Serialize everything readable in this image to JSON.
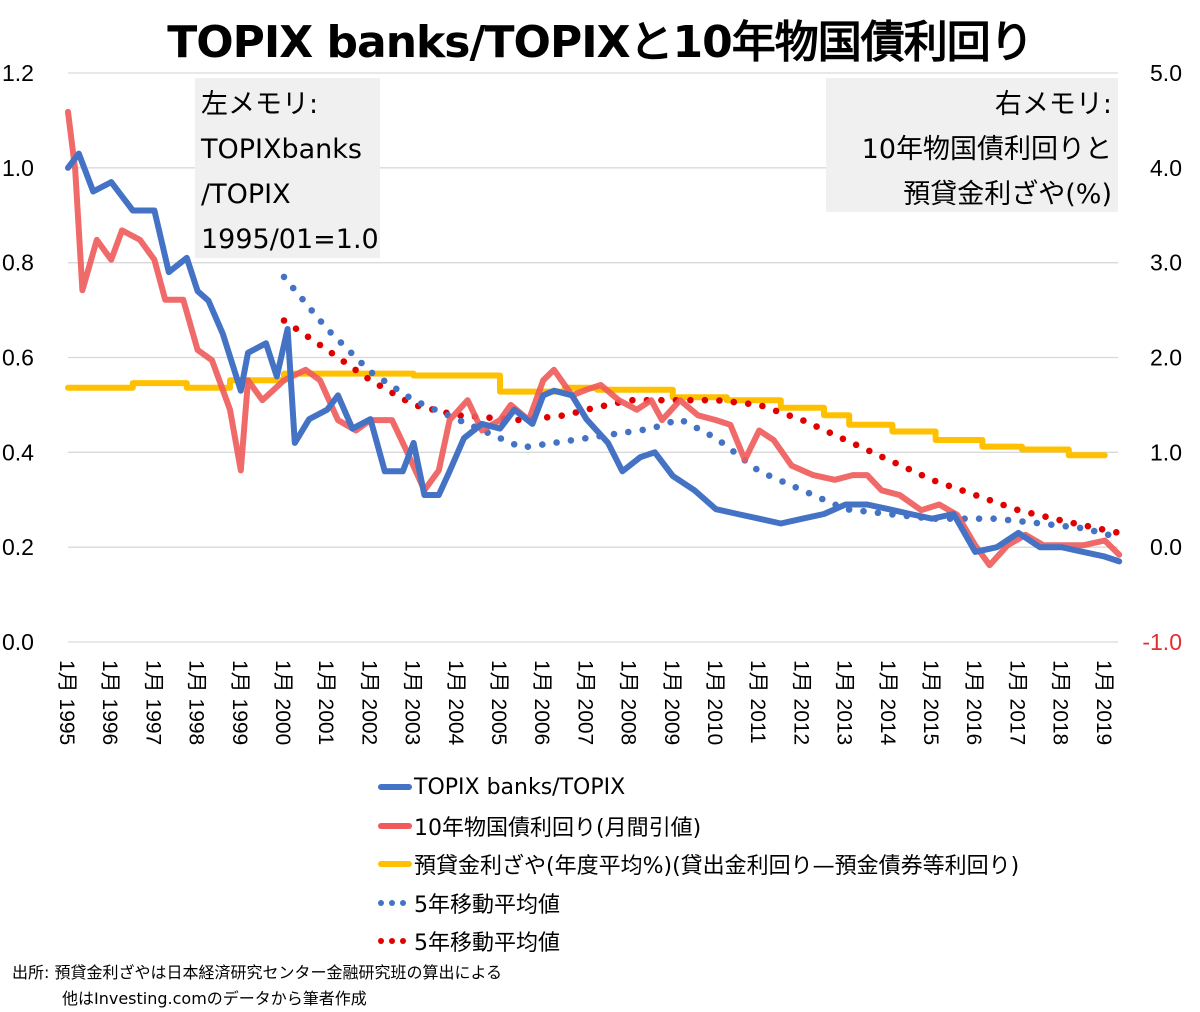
{
  "chart_data": {
    "type": "line",
    "title": "TOPIX banks/TOPIXと10年物国債利回り",
    "x_ticks": [
      {
        "month": "1月",
        "year": "1995"
      },
      {
        "month": "1月",
        "year": "1996"
      },
      {
        "month": "1月",
        "year": "1997"
      },
      {
        "month": "1月",
        "year": "1998"
      },
      {
        "month": "1月",
        "year": "1999"
      },
      {
        "month": "1月",
        "year": "2000"
      },
      {
        "month": "1月",
        "year": "2001"
      },
      {
        "month": "1月",
        "year": "2002"
      },
      {
        "month": "1月",
        "year": "2003"
      },
      {
        "month": "1月",
        "year": "2004"
      },
      {
        "month": "1月",
        "year": "2005"
      },
      {
        "month": "1月",
        "year": "2006"
      },
      {
        "month": "1月",
        "year": "2007"
      },
      {
        "month": "1月",
        "year": "2008"
      },
      {
        "month": "1月",
        "year": "2009"
      },
      {
        "month": "1月",
        "year": "2010"
      },
      {
        "month": "1月",
        "year": "2011"
      },
      {
        "month": "1月",
        "year": "2012"
      },
      {
        "month": "1月",
        "year": "2013"
      },
      {
        "month": "1月",
        "year": "2014"
      },
      {
        "month": "1月",
        "year": "2015"
      },
      {
        "month": "1月",
        "year": "2016"
      },
      {
        "month": "1月",
        "year": "2017"
      },
      {
        "month": "1月",
        "year": "2018"
      },
      {
        "month": "1月",
        "year": "2019"
      }
    ],
    "x_range": [
      "1995-01",
      "2019-06"
    ],
    "y_left": {
      "range": [
        0,
        1.2
      ],
      "ticks": [
        "0.0",
        "0.2",
        "0.4",
        "0.6",
        "0.8",
        "1.0",
        "1.2"
      ]
    },
    "y_right": {
      "range": [
        -1,
        5
      ],
      "ticks": [
        "-1.0",
        "0.0",
        "1.0",
        "2.0",
        "3.0",
        "4.0",
        "5.0"
      ],
      "negative_tick_color": "#e03030"
    },
    "grid": true,
    "legend_placement": "bottom",
    "memo_left": [
      "左メモリ:",
      "TOPIXbanks",
      "/TOPIX",
      "1995/01=1.0"
    ],
    "memo_right": [
      "右メモリ:",
      "10年物国債利回りと",
      "預貸金利ざや(%)"
    ],
    "series": [
      {
        "name": "TOPIX banks/TOPIX",
        "axis": "left",
        "style": "solid",
        "color": "#4472c4",
        "points": [
          [
            "1995-01",
            1.0
          ],
          [
            "1995-04",
            1.03
          ],
          [
            "1995-08",
            0.95
          ],
          [
            "1996-01",
            0.97
          ],
          [
            "1996-07",
            0.91
          ],
          [
            "1997-01",
            0.91
          ],
          [
            "1997-05",
            0.78
          ],
          [
            "1997-10",
            0.81
          ],
          [
            "1998-01",
            0.74
          ],
          [
            "1998-04",
            0.72
          ],
          [
            "1998-08",
            0.65
          ],
          [
            "1999-01",
            0.53
          ],
          [
            "1999-03",
            0.61
          ],
          [
            "1999-08",
            0.63
          ],
          [
            "1999-11",
            0.56
          ],
          [
            "2000-02",
            0.66
          ],
          [
            "2000-04",
            0.42
          ],
          [
            "2000-08",
            0.47
          ],
          [
            "2001-01",
            0.49
          ],
          [
            "2001-04",
            0.52
          ],
          [
            "2001-08",
            0.45
          ],
          [
            "2002-01",
            0.47
          ],
          [
            "2002-05",
            0.36
          ],
          [
            "2002-10",
            0.36
          ],
          [
            "2003-01",
            0.42
          ],
          [
            "2003-04",
            0.31
          ],
          [
            "2003-08",
            0.31
          ],
          [
            "2003-11",
            0.36
          ],
          [
            "2004-03",
            0.43
          ],
          [
            "2004-08",
            0.46
          ],
          [
            "2005-01",
            0.45
          ],
          [
            "2005-05",
            0.49
          ],
          [
            "2005-10",
            0.46
          ],
          [
            "2006-01",
            0.52
          ],
          [
            "2006-04",
            0.53
          ],
          [
            "2006-09",
            0.52
          ],
          [
            "2007-01",
            0.47
          ],
          [
            "2007-07",
            0.42
          ],
          [
            "2007-11",
            0.36
          ],
          [
            "2008-04",
            0.39
          ],
          [
            "2008-08",
            0.4
          ],
          [
            "2009-01",
            0.35
          ],
          [
            "2009-07",
            0.32
          ],
          [
            "2010-01",
            0.28
          ],
          [
            "2010-07",
            0.27
          ],
          [
            "2011-01",
            0.26
          ],
          [
            "2011-07",
            0.25
          ],
          [
            "2012-01",
            0.26
          ],
          [
            "2012-07",
            0.27
          ],
          [
            "2013-01",
            0.29
          ],
          [
            "2013-07",
            0.29
          ],
          [
            "2014-01",
            0.28
          ],
          [
            "2014-07",
            0.27
          ],
          [
            "2015-01",
            0.26
          ],
          [
            "2015-07",
            0.27
          ],
          [
            "2016-01",
            0.19
          ],
          [
            "2016-07",
            0.2
          ],
          [
            "2017-01",
            0.23
          ],
          [
            "2017-07",
            0.2
          ],
          [
            "2018-01",
            0.2
          ],
          [
            "2018-07",
            0.19
          ],
          [
            "2019-01",
            0.18
          ],
          [
            "2019-05",
            0.17
          ]
        ]
      },
      {
        "name": "10年物国債利回り(月間引値)",
        "axis": "right",
        "style": "solid",
        "color": "#f05a5a",
        "points": [
          [
            "1995-01",
            4.59
          ],
          [
            "1995-03",
            3.98
          ],
          [
            "1995-05",
            2.71
          ],
          [
            "1995-09",
            3.24
          ],
          [
            "1996-01",
            3.03
          ],
          [
            "1996-04",
            3.34
          ],
          [
            "1996-09",
            3.24
          ],
          [
            "1997-01",
            3.03
          ],
          [
            "1997-04",
            2.61
          ],
          [
            "1997-09",
            2.61
          ],
          [
            "1998-01",
            2.08
          ],
          [
            "1998-05",
            1.97
          ],
          [
            "1998-10",
            1.45
          ],
          [
            "1999-01",
            0.81
          ],
          [
            "1999-03",
            1.76
          ],
          [
            "1999-07",
            1.55
          ],
          [
            "2000-01",
            1.76
          ],
          [
            "2000-07",
            1.87
          ],
          [
            "2000-11",
            1.76
          ],
          [
            "2001-04",
            1.34
          ],
          [
            "2001-09",
            1.23
          ],
          [
            "2002-01",
            1.34
          ],
          [
            "2002-07",
            1.34
          ],
          [
            "2002-11",
            1.02
          ],
          [
            "2003-04",
            0.6
          ],
          [
            "2003-08",
            0.81
          ],
          [
            "2003-11",
            1.34
          ],
          [
            "2004-04",
            1.55
          ],
          [
            "2004-08",
            1.23
          ],
          [
            "2005-01",
            1.34
          ],
          [
            "2005-04",
            1.5
          ],
          [
            "2005-09",
            1.34
          ],
          [
            "2006-01",
            1.76
          ],
          [
            "2006-04",
            1.87
          ],
          [
            "2006-09",
            1.6
          ],
          [
            "2007-01",
            1.66
          ],
          [
            "2007-05",
            1.71
          ],
          [
            "2007-10",
            1.55
          ],
          [
            "2008-03",
            1.45
          ],
          [
            "2008-07",
            1.55
          ],
          [
            "2008-10",
            1.34
          ],
          [
            "2009-03",
            1.55
          ],
          [
            "2009-08",
            1.39
          ],
          [
            "2010-01",
            1.34
          ],
          [
            "2010-05",
            1.29
          ],
          [
            "2010-09",
            0.92
          ],
          [
            "2011-01",
            1.23
          ],
          [
            "2011-05",
            1.13
          ],
          [
            "2011-10",
            0.86
          ],
          [
            "2012-04",
            0.76
          ],
          [
            "2012-10",
            0.71
          ],
          [
            "2013-03",
            0.76
          ],
          [
            "2013-07",
            0.76
          ],
          [
            "2013-11",
            0.6
          ],
          [
            "2014-04",
            0.55
          ],
          [
            "2014-10",
            0.39
          ],
          [
            "2015-03",
            0.45
          ],
          [
            "2015-08",
            0.34
          ],
          [
            "2016-01",
            0.02
          ],
          [
            "2016-05",
            -0.19
          ],
          [
            "2016-10",
            0.02
          ],
          [
            "2017-03",
            0.13
          ],
          [
            "2017-08",
            0.02
          ],
          [
            "2018-01",
            0.02
          ],
          [
            "2018-07",
            0.02
          ],
          [
            "2019-01",
            0.07
          ],
          [
            "2019-05",
            -0.08
          ]
        ]
      },
      {
        "name": "預貸金利ざや(年度平均%)(貸出金利回り—預金債券等利回り)",
        "axis": "right",
        "style": "step",
        "color": "#ffc000",
        "points": [
          [
            "1995-01",
            1.68
          ],
          [
            "1996-07",
            1.73
          ],
          [
            "1997-10",
            1.68
          ],
          [
            "1998-10",
            1.76
          ],
          [
            "2000-01",
            1.83
          ],
          [
            "2003-01",
            1.81
          ],
          [
            "2005-01",
            1.64
          ],
          [
            "2006-07",
            1.68
          ],
          [
            "2007-04",
            1.66
          ],
          [
            "2009-01",
            1.58
          ],
          [
            "2010-04",
            1.55
          ],
          [
            "2011-07",
            1.47
          ],
          [
            "2012-07",
            1.39
          ],
          [
            "2013-02",
            1.29
          ],
          [
            "2014-02",
            1.22
          ],
          [
            "2015-02",
            1.13
          ],
          [
            "2016-03",
            1.06
          ],
          [
            "2017-02",
            1.03
          ],
          [
            "2018-03",
            0.97
          ],
          [
            "2019-01",
            0.97
          ]
        ]
      },
      {
        "name": "5年移動平均値",
        "axis": "left",
        "style": "dotted",
        "color": "#4472c4",
        "points": [
          [
            "2000-01",
            0.77
          ],
          [
            "2001-01",
            0.66
          ],
          [
            "2002-01",
            0.57
          ],
          [
            "2003-01",
            0.51
          ],
          [
            "2004-01",
            0.47
          ],
          [
            "2005-07",
            0.41
          ],
          [
            "2007-01",
            0.43
          ],
          [
            "2008-07",
            0.45
          ],
          [
            "2009-03",
            0.47
          ],
          [
            "2010-01",
            0.43
          ],
          [
            "2011-01",
            0.36
          ],
          [
            "2012-01",
            0.32
          ],
          [
            "2013-01",
            0.28
          ],
          [
            "2014-01",
            0.27
          ],
          [
            "2015-01",
            0.26
          ],
          [
            "2016-07",
            0.26
          ],
          [
            "2017-07",
            0.25
          ],
          [
            "2018-07",
            0.24
          ],
          [
            "2019-05",
            0.22
          ]
        ]
      },
      {
        "name": "5年移動平均値",
        "axis": "right",
        "style": "dotted",
        "color": "#e00000",
        "points": [
          [
            "2000-01",
            2.39
          ],
          [
            "2001-01",
            2.08
          ],
          [
            "2002-01",
            1.76
          ],
          [
            "2003-01",
            1.5
          ],
          [
            "2004-01",
            1.39
          ],
          [
            "2005-07",
            1.34
          ],
          [
            "2006-07",
            1.39
          ],
          [
            "2007-01",
            1.45
          ],
          [
            "2008-01",
            1.55
          ],
          [
            "2010-01",
            1.55
          ],
          [
            "2011-01",
            1.5
          ],
          [
            "2012-01",
            1.34
          ],
          [
            "2013-01",
            1.13
          ],
          [
            "2014-01",
            0.92
          ],
          [
            "2015-01",
            0.71
          ],
          [
            "2016-01",
            0.55
          ],
          [
            "2017-01",
            0.39
          ],
          [
            "2018-01",
            0.28
          ],
          [
            "2019-05",
            0.15
          ]
        ]
      }
    ]
  },
  "source": {
    "line1": "出所: 預貸金利ざやは日本経済研究センター金融研究班の算出による",
    "line2": "他はInvesting.comのデータから筆者作成"
  }
}
